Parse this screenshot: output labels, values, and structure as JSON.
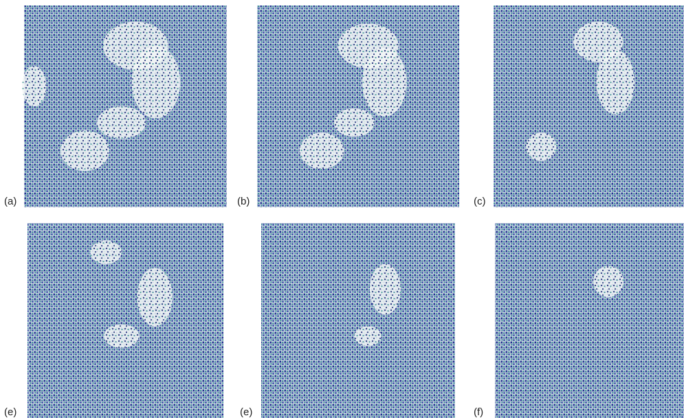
{
  "panels": [
    {
      "label": "(a)"
    },
    {
      "label": "(b)"
    },
    {
      "label": "(c)"
    },
    {
      "label": "(e)"
    },
    {
      "label": "(e)"
    },
    {
      "label": "(f)"
    }
  ]
}
